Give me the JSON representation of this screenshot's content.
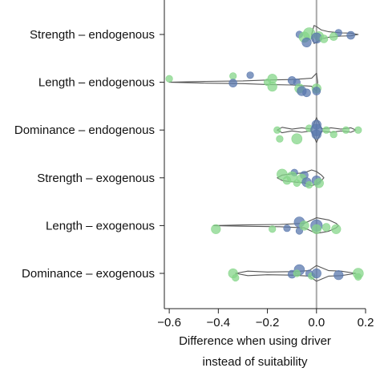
{
  "chart_data": {
    "type": "scatter",
    "title": "",
    "xlabel": [
      "Difference when using driver",
      "instead of suitability"
    ],
    "ylabel": "",
    "xlim": [
      -0.62,
      0.2
    ],
    "x_ticks": [
      -0.6,
      -0.4,
      -0.2,
      0.0,
      0.2
    ],
    "x_tick_labels": [
      "−0.6",
      "−0.4",
      "−0.2",
      "0.0",
      "0.2"
    ],
    "reference_line_x": 0,
    "grid": false,
    "colors": {
      "green": "#86d68a",
      "blue": "#5a78ad",
      "violin": "#555555",
      "axis": "#222222",
      "zero_line": "#aaaaaa"
    },
    "categories": [
      "Strength – endogenous",
      "Length – endogenous",
      "Dominance – endogenous",
      "Strength – exogenous",
      "Length – exogenous",
      "Dominance – exogenous"
    ],
    "violins": [
      {
        "category": 0,
        "profile": [
          [
            -0.02,
            0
          ],
          [
            -0.01,
            0.4
          ],
          [
            0.0,
            0.35
          ],
          [
            0.02,
            0.2
          ],
          [
            0.05,
            0.12
          ],
          [
            0.1,
            0.07
          ],
          [
            0.14,
            0.06
          ],
          [
            0.17,
            0
          ]
        ]
      },
      {
        "category": 1,
        "profile": [
          [
            -0.6,
            0
          ],
          [
            -0.45,
            0.04
          ],
          [
            -0.3,
            0.06
          ],
          [
            -0.2,
            0.1
          ],
          [
            -0.1,
            0.12
          ],
          [
            -0.02,
            0.18
          ],
          [
            0.0,
            0.4
          ],
          [
            0.005,
            0
          ]
        ]
      },
      {
        "category": 2,
        "profile": [
          [
            -0.16,
            0
          ],
          [
            -0.14,
            0.12
          ],
          [
            -0.1,
            0.04
          ],
          [
            -0.06,
            0.1
          ],
          [
            -0.02,
            0.04
          ],
          [
            0.0,
            0.55
          ],
          [
            0.02,
            0.05
          ],
          [
            0.06,
            0.1
          ],
          [
            0.1,
            0.04
          ],
          [
            0.14,
            0.1
          ],
          [
            0.16,
            0
          ]
        ]
      },
      {
        "category": 3,
        "profile": [
          [
            -0.16,
            0
          ],
          [
            -0.14,
            0.12
          ],
          [
            -0.1,
            0.18
          ],
          [
            -0.05,
            0.22
          ],
          [
            -0.02,
            0.35
          ],
          [
            0.0,
            0.28
          ],
          [
            0.02,
            0.12
          ],
          [
            0.03,
            0
          ]
        ]
      },
      {
        "category": 4,
        "profile": [
          [
            -0.42,
            0
          ],
          [
            -0.3,
            0.03
          ],
          [
            -0.15,
            0.05
          ],
          [
            -0.05,
            0.1
          ],
          [
            0.0,
            0.35
          ],
          [
            0.05,
            0.25
          ],
          [
            0.08,
            0.1
          ],
          [
            0.09,
            0
          ]
        ]
      },
      {
        "category": 5,
        "profile": [
          [
            -0.33,
            0
          ],
          [
            -0.28,
            0.1
          ],
          [
            -0.2,
            0.06
          ],
          [
            -0.1,
            0.08
          ],
          [
            -0.03,
            0.12
          ],
          [
            0.0,
            0.35
          ],
          [
            0.05,
            0.12
          ],
          [
            0.1,
            0.1
          ],
          [
            0.16,
            0
          ]
        ]
      }
    ],
    "points": [
      {
        "category": 0,
        "x": -0.07,
        "jitter": 0.0,
        "color": "blue",
        "size": 3
      },
      {
        "category": 0,
        "x": 0.01,
        "jitter": 0.1,
        "color": "green",
        "size": 5
      },
      {
        "category": 0,
        "x": -0.05,
        "jitter": 0.15,
        "color": "green",
        "size": 6
      },
      {
        "category": 0,
        "x": -0.03,
        "jitter": -0.05,
        "color": "green",
        "size": 7
      },
      {
        "category": 0,
        "x": 0.0,
        "jitter": 0.2,
        "color": "blue",
        "size": 6
      },
      {
        "category": 0,
        "x": -0.04,
        "jitter": 0.45,
        "color": "blue",
        "size": 5
      },
      {
        "category": 0,
        "x": 0.03,
        "jitter": 0.25,
        "color": "green",
        "size": 4
      },
      {
        "category": 0,
        "x": 0.09,
        "jitter": -0.1,
        "color": "blue",
        "size": 3
      },
      {
        "category": 0,
        "x": 0.14,
        "jitter": 0.05,
        "color": "blue",
        "size": 4
      },
      {
        "category": 0,
        "x": 0.07,
        "jitter": 0.12,
        "color": "green",
        "size": 4
      },
      {
        "category": 1,
        "x": -0.6,
        "jitter": -0.2,
        "color": "green",
        "size": 3
      },
      {
        "category": 1,
        "x": -0.34,
        "jitter": -0.35,
        "color": "green",
        "size": 3
      },
      {
        "category": 1,
        "x": -0.27,
        "jitter": -0.4,
        "color": "blue",
        "size": 3
      },
      {
        "category": 1,
        "x": -0.34,
        "jitter": 0.05,
        "color": "blue",
        "size": 4
      },
      {
        "category": 1,
        "x": -0.2,
        "jitter": 0.0,
        "color": "green",
        "size": 3
      },
      {
        "category": 1,
        "x": -0.18,
        "jitter": -0.2,
        "color": "green",
        "size": 5
      },
      {
        "category": 1,
        "x": -0.18,
        "jitter": 0.25,
        "color": "green",
        "size": 5
      },
      {
        "category": 1,
        "x": -0.1,
        "jitter": -0.1,
        "color": "blue",
        "size": 4
      },
      {
        "category": 1,
        "x": -0.08,
        "jitter": 0.0,
        "color": "blue",
        "size": 3
      },
      {
        "category": 1,
        "x": -0.07,
        "jitter": 0.35,
        "color": "green",
        "size": 5
      },
      {
        "category": 1,
        "x": -0.06,
        "jitter": 0.5,
        "color": "blue",
        "size": 5
      },
      {
        "category": 1,
        "x": -0.04,
        "jitter": 0.6,
        "color": "blue",
        "size": 4
      },
      {
        "category": 1,
        "x": 0.0,
        "jitter": 0.35,
        "color": "green",
        "size": 5
      },
      {
        "category": 1,
        "x": 0.0,
        "jitter": 0.5,
        "color": "blue",
        "size": 4
      },
      {
        "category": 2,
        "x": -0.16,
        "jitter": 0.0,
        "color": "green",
        "size": 3
      },
      {
        "category": 2,
        "x": -0.15,
        "jitter": 0.5,
        "color": "green",
        "size": 3
      },
      {
        "category": 2,
        "x": -0.08,
        "jitter": 0.5,
        "color": "green",
        "size": 6
      },
      {
        "category": 2,
        "x": -0.03,
        "jitter": -0.1,
        "color": "green",
        "size": 3
      },
      {
        "category": 2,
        "x": 0.0,
        "jitter": -0.3,
        "color": "blue",
        "size": 5
      },
      {
        "category": 2,
        "x": 0.0,
        "jitter": 0.0,
        "color": "blue",
        "size": 7
      },
      {
        "category": 2,
        "x": 0.0,
        "jitter": 0.25,
        "color": "blue",
        "size": 5
      },
      {
        "category": 2,
        "x": 0.04,
        "jitter": 0.0,
        "color": "green",
        "size": 3
      },
      {
        "category": 2,
        "x": 0.07,
        "jitter": 0.25,
        "color": "green",
        "size": 3
      },
      {
        "category": 2,
        "x": 0.12,
        "jitter": 0.0,
        "color": "green",
        "size": 3
      },
      {
        "category": 2,
        "x": 0.17,
        "jitter": 0.0,
        "color": "green",
        "size": 3
      },
      {
        "category": 3,
        "x": -0.09,
        "jitter": -0.3,
        "color": "blue",
        "size": 3
      },
      {
        "category": 3,
        "x": -0.14,
        "jitter": -0.2,
        "color": "green",
        "size": 6
      },
      {
        "category": 3,
        "x": -0.12,
        "jitter": 0.15,
        "color": "green",
        "size": 4
      },
      {
        "category": 3,
        "x": -0.1,
        "jitter": -0.05,
        "color": "green",
        "size": 6
      },
      {
        "category": 3,
        "x": -0.05,
        "jitter": -0.15,
        "color": "blue",
        "size": 4
      },
      {
        "category": 3,
        "x": -0.06,
        "jitter": 0.05,
        "color": "green",
        "size": 5
      },
      {
        "category": 3,
        "x": -0.08,
        "jitter": 0.3,
        "color": "green",
        "size": 3
      },
      {
        "category": 3,
        "x": -0.04,
        "jitter": 0.25,
        "color": "blue",
        "size": 5
      },
      {
        "category": 3,
        "x": 0.0,
        "jitter": 0.15,
        "color": "blue",
        "size": 5
      },
      {
        "category": 3,
        "x": 0.01,
        "jitter": 0.3,
        "color": "green",
        "size": 5
      },
      {
        "category": 3,
        "x": -0.03,
        "jitter": 0.4,
        "color": "green",
        "size": 3
      },
      {
        "category": 4,
        "x": -0.07,
        "jitter": -0.2,
        "color": "blue",
        "size": 6
      },
      {
        "category": 4,
        "x": -0.41,
        "jitter": 0.2,
        "color": "green",
        "size": 5
      },
      {
        "category": 4,
        "x": -0.18,
        "jitter": 0.2,
        "color": "green",
        "size": 3
      },
      {
        "category": 4,
        "x": -0.12,
        "jitter": 0.15,
        "color": "blue",
        "size": 3
      },
      {
        "category": 4,
        "x": -0.07,
        "jitter": 0.3,
        "color": "blue",
        "size": 3
      },
      {
        "category": 4,
        "x": -0.05,
        "jitter": 0.0,
        "color": "green",
        "size": 5
      },
      {
        "category": 4,
        "x": 0.0,
        "jitter": 0.0,
        "color": "blue",
        "size": 7
      },
      {
        "category": 4,
        "x": 0.0,
        "jitter": 0.2,
        "color": "green",
        "size": 5
      },
      {
        "category": 4,
        "x": 0.04,
        "jitter": 0.1,
        "color": "green",
        "size": 4
      },
      {
        "category": 4,
        "x": 0.08,
        "jitter": 0.2,
        "color": "green",
        "size": 5
      },
      {
        "category": 5,
        "x": -0.07,
        "jitter": -0.2,
        "color": "blue",
        "size": 6
      },
      {
        "category": 5,
        "x": -0.34,
        "jitter": 0.0,
        "color": "green",
        "size": 5
      },
      {
        "category": 5,
        "x": -0.33,
        "jitter": 0.25,
        "color": "green",
        "size": 3
      },
      {
        "category": 5,
        "x": -0.1,
        "jitter": 0.05,
        "color": "blue",
        "size": 4
      },
      {
        "category": 5,
        "x": -0.08,
        "jitter": 0.0,
        "color": "green",
        "size": 3
      },
      {
        "category": 5,
        "x": -0.03,
        "jitter": 0.0,
        "color": "blue",
        "size": 3
      },
      {
        "category": 5,
        "x": -0.02,
        "jitter": 0.15,
        "color": "green",
        "size": 3
      },
      {
        "category": 5,
        "x": 0.0,
        "jitter": 0.0,
        "color": "blue",
        "size": 5
      },
      {
        "category": 5,
        "x": 0.09,
        "jitter": 0.1,
        "color": "blue",
        "size": 5
      },
      {
        "category": 5,
        "x": 0.17,
        "jitter": 0.0,
        "color": "green",
        "size": 6
      },
      {
        "category": 5,
        "x": 0.17,
        "jitter": 0.2,
        "color": "green",
        "size": 3
      }
    ]
  }
}
